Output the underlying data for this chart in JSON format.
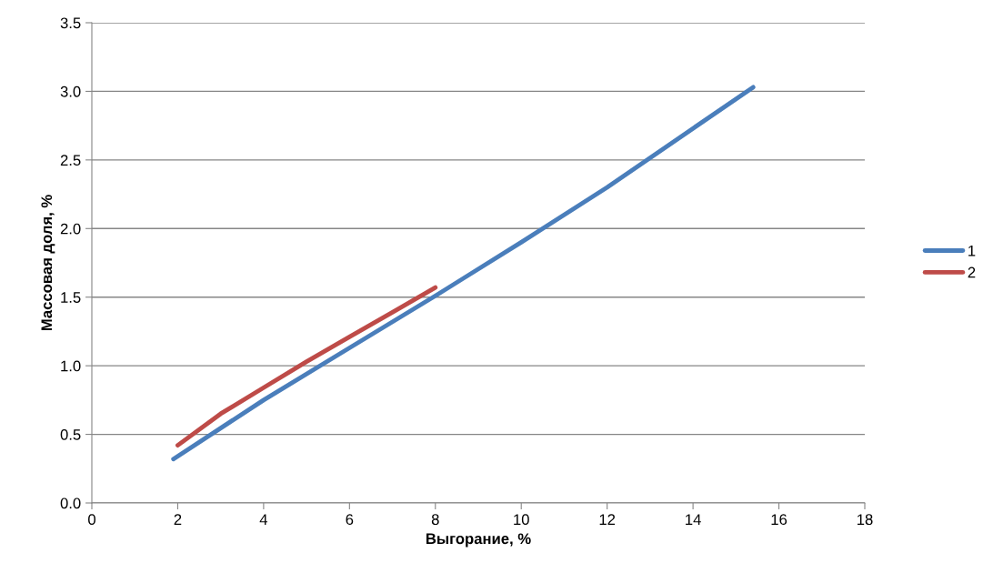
{
  "chart_data": {
    "type": "line",
    "xlabel": "Выгорание, %",
    "ylabel": "Массовая доля, %",
    "series": [
      {
        "name": "1",
        "color": "#4a7ebb",
        "x": [
          1.9,
          4,
          6,
          8,
          10,
          12,
          14,
          15.4
        ],
        "values": [
          0.32,
          0.75,
          1.13,
          1.51,
          1.9,
          2.3,
          2.73,
          3.03
        ]
      },
      {
        "name": "2",
        "color": "#be4b48",
        "x": [
          2.0,
          3,
          4,
          5,
          6,
          7,
          8
        ],
        "values": [
          0.42,
          0.65,
          0.84,
          1.03,
          1.21,
          1.39,
          1.57
        ]
      }
    ],
    "xlim": [
      0,
      18
    ],
    "xticks": [
      0,
      2,
      4,
      6,
      8,
      10,
      12,
      14,
      16,
      18
    ],
    "ylim": [
      0,
      3.5
    ],
    "yticks": [
      {
        "value": 0,
        "label": "0.0"
      },
      {
        "value": 0.5,
        "label": "0.5"
      },
      {
        "value": 1,
        "label": "1.0"
      },
      {
        "value": 1.5,
        "label": "1.5"
      },
      {
        "value": 2,
        "label": "2.0"
      },
      {
        "value": 2.5,
        "label": "2.5"
      },
      {
        "value": 3,
        "label": "3.0"
      },
      {
        "value": 3.5,
        "label": "3.5"
      }
    ],
    "grid": "y",
    "legend": "right",
    "marker": "none",
    "line_style": "solid"
  }
}
